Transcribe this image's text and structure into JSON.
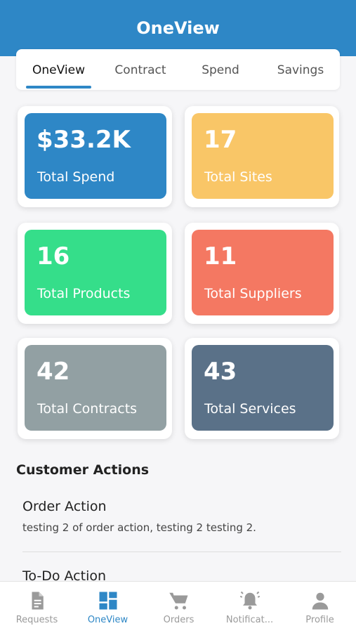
{
  "header": {
    "title": "OneView",
    "background": "#2e87c6"
  },
  "tabs": [
    {
      "label": "OneView",
      "active": true
    },
    {
      "label": "Contract",
      "active": false
    },
    {
      "label": "Spend",
      "active": false
    },
    {
      "label": "Savings",
      "active": false
    }
  ],
  "stats": [
    {
      "value": "$33.2K",
      "label": "Total Spend",
      "color": "#2e87c6"
    },
    {
      "value": "17",
      "label": "Total Sites",
      "color": "#f9c667"
    },
    {
      "value": "16",
      "label": "Total Products",
      "color": "#35de8a"
    },
    {
      "value": "11",
      "label": "Total Suppliers",
      "color": "#f47862"
    },
    {
      "value": "42",
      "label": "Total Contracts",
      "color": "#92a0a3"
    },
    {
      "value": "43",
      "label": "Total Services",
      "color": "#5a7188"
    }
  ],
  "customer_actions": {
    "title": "Customer Actions",
    "items": [
      {
        "title": "Order Action",
        "description": "testing 2 of order action, testing 2 testing 2."
      },
      {
        "title": "To-Do Action",
        "description": ""
      }
    ]
  },
  "bottom_nav": [
    {
      "label": "Requests",
      "icon": "document-icon",
      "active": false
    },
    {
      "label": "OneView",
      "icon": "dashboard-icon",
      "active": true
    },
    {
      "label": "Orders",
      "icon": "cart-icon",
      "active": false
    },
    {
      "label": "Notificat...",
      "icon": "bell-icon",
      "active": false
    },
    {
      "label": "Profile",
      "icon": "person-icon",
      "active": false
    }
  ]
}
